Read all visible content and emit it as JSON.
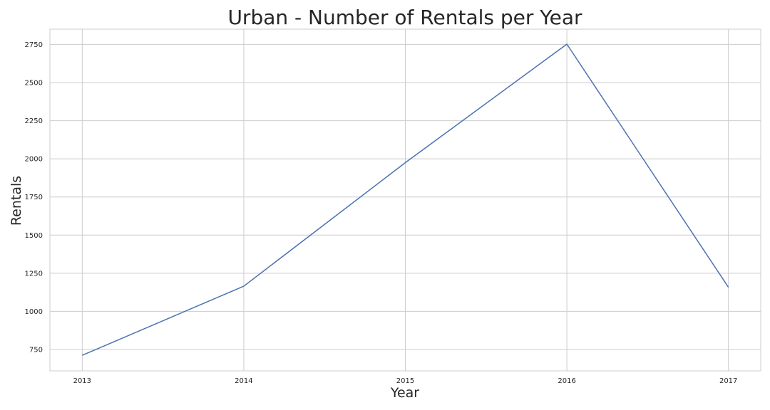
{
  "chart_data": {
    "type": "line",
    "title": "Urban - Number of Rentals per Year",
    "xlabel": "Year",
    "ylabel": "Rentals",
    "x": [
      2013,
      2014,
      2015,
      2016,
      2017
    ],
    "x_tick_labels": [
      "2013",
      "2014",
      "2015",
      "2016",
      "2017"
    ],
    "xlim": [
      2012.8,
      2017.2
    ],
    "y_ticks": [
      750,
      1000,
      1250,
      1500,
      1750,
      2000,
      2250,
      2500,
      2750
    ],
    "y_tick_labels": [
      "750",
      "1000",
      "1250",
      "1500",
      "1750",
      "2000",
      "2250",
      "2500",
      "2750"
    ],
    "ylim": [
      610,
      2850
    ],
    "grid": true,
    "series": [
      {
        "values": [
          712,
          1165,
          1975,
          2752,
          1158
        ],
        "color": "#4c72b0"
      }
    ]
  }
}
